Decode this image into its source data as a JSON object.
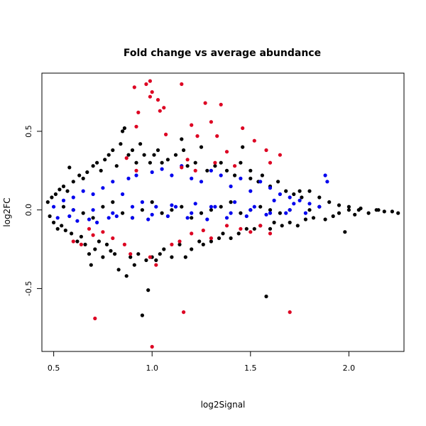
{
  "chart_data": {
    "type": "scatter",
    "title": "Fold change vs average abundance",
    "xlabel": "log2Signal",
    "ylabel": "log2FC",
    "xlim": [
      0.44,
      2.28
    ],
    "ylim": [
      -0.9,
      0.87
    ],
    "xticks": [
      {
        "value": 0.5,
        "label": "0.5"
      },
      {
        "value": 1.0,
        "label": "1.0"
      },
      {
        "value": 1.5,
        "label": "1.5"
      },
      {
        "value": 2.0,
        "label": "2.0"
      }
    ],
    "yticks": [
      {
        "value": -0.5,
        "label": "-0.5"
      },
      {
        "value": 0.0,
        "label": "0.0"
      },
      {
        "value": 0.5,
        "label": "0.5"
      }
    ],
    "colors": {
      "black": "#000000",
      "blue": "#0000ee",
      "red": "#dd0022"
    },
    "series": [
      {
        "color": "black",
        "points": [
          [
            0.47,
            0.05
          ],
          [
            0.48,
            -0.04
          ],
          [
            0.49,
            0.08
          ],
          [
            0.5,
            -0.08
          ],
          [
            0.51,
            0.1
          ],
          [
            0.52,
            -0.12
          ],
          [
            0.53,
            0.13
          ],
          [
            0.54,
            -0.1
          ],
          [
            0.55,
            0.15
          ],
          [
            0.56,
            -0.13
          ],
          [
            0.57,
            0.12
          ],
          [
            0.58,
            0.27
          ],
          [
            0.59,
            -0.15
          ],
          [
            0.6,
            0.18
          ],
          [
            0.62,
            -0.2
          ],
          [
            0.63,
            0.22
          ],
          [
            0.64,
            -0.17
          ],
          [
            0.65,
            0.2
          ],
          [
            0.66,
            -0.22
          ],
          [
            0.67,
            0.24
          ],
          [
            0.68,
            -0.28
          ],
          [
            0.69,
            -0.35
          ],
          [
            0.7,
            0.28
          ],
          [
            0.71,
            -0.25
          ],
          [
            0.72,
            0.3
          ],
          [
            0.73,
            -0.2
          ],
          [
            0.74,
            0.25
          ],
          [
            0.75,
            -0.3
          ],
          [
            0.76,
            0.32
          ],
          [
            0.77,
            -0.22
          ],
          [
            0.78,
            0.35
          ],
          [
            0.79,
            -0.26
          ],
          [
            0.8,
            0.38
          ],
          [
            0.81,
            -0.28
          ],
          [
            0.82,
            0.28
          ],
          [
            0.83,
            -0.38
          ],
          [
            0.84,
            0.42
          ],
          [
            0.85,
            0.5
          ],
          [
            0.86,
            0.52
          ],
          [
            0.87,
            -0.42
          ],
          [
            0.88,
            0.35
          ],
          [
            0.89,
            -0.3
          ],
          [
            0.9,
            0.38
          ],
          [
            0.91,
            -0.35
          ],
          [
            0.92,
            0.3
          ],
          [
            0.93,
            -0.28
          ],
          [
            0.94,
            0.42
          ],
          [
            0.95,
            -0.67
          ],
          [
            0.96,
            0.35
          ],
          [
            0.97,
            -0.32
          ],
          [
            0.98,
            -0.51
          ],
          [
            0.99,
            0.3
          ],
          [
            1.0,
            -0.3
          ],
          [
            1.01,
            0.35
          ],
          [
            1.02,
            -0.32
          ],
          [
            1.03,
            0.38
          ],
          [
            1.04,
            -0.28
          ],
          [
            1.05,
            0.3
          ],
          [
            1.06,
            -0.25
          ],
          [
            1.08,
            0.32
          ],
          [
            1.1,
            -0.3
          ],
          [
            1.12,
            0.35
          ],
          [
            1.14,
            -0.22
          ],
          [
            1.15,
            0.45
          ],
          [
            1.16,
            0.38
          ],
          [
            1.17,
            -0.3
          ],
          [
            1.18,
            0.28
          ],
          [
            1.2,
            -0.25
          ],
          [
            1.22,
            0.3
          ],
          [
            1.24,
            -0.2
          ],
          [
            1.25,
            0.4
          ],
          [
            1.26,
            -0.22
          ],
          [
            1.28,
            0.25
          ],
          [
            1.3,
            -0.2
          ],
          [
            1.32,
            0.28
          ],
          [
            1.34,
            -0.18
          ],
          [
            1.35,
            0.3
          ],
          [
            1.36,
            -0.15
          ],
          [
            1.38,
            0.25
          ],
          [
            1.4,
            -0.18
          ],
          [
            1.42,
            0.22
          ],
          [
            1.44,
            -0.15
          ],
          [
            1.45,
            0.3
          ],
          [
            1.46,
            0.4
          ],
          [
            1.48,
            -0.12
          ],
          [
            1.5,
            0.2
          ],
          [
            1.52,
            -0.12
          ],
          [
            1.54,
            0.18
          ],
          [
            1.55,
            -0.1
          ],
          [
            1.56,
            0.22
          ],
          [
            1.58,
            -0.55
          ],
          [
            1.6,
            0.15
          ],
          [
            1.62,
            -0.08
          ],
          [
            1.64,
            0.18
          ],
          [
            1.66,
            -0.1
          ],
          [
            1.68,
            0.12
          ],
          [
            1.7,
            -0.08
          ],
          [
            1.72,
            0.1
          ],
          [
            1.74,
            -0.1
          ],
          [
            1.76,
            0.08
          ],
          [
            1.78,
            -0.06
          ],
          [
            1.8,
            0.12
          ],
          [
            1.82,
            -0.05
          ],
          [
            1.85,
            0.08
          ],
          [
            1.88,
            -0.06
          ],
          [
            1.9,
            0.05
          ],
          [
            1.92,
            -0.04
          ],
          [
            1.95,
            0.03
          ],
          [
            1.98,
            -0.14
          ],
          [
            2.0,
            0.02
          ],
          [
            2.03,
            -0.03
          ],
          [
            2.06,
            0.01
          ],
          [
            2.1,
            -0.02
          ],
          [
            2.14,
            0.0
          ],
          [
            2.18,
            -0.01
          ],
          [
            2.22,
            -0.01
          ],
          [
            2.25,
            -0.02
          ],
          [
            1.5,
            0.25
          ],
          [
            1.6,
            -0.12
          ],
          [
            1.75,
            0.12
          ],
          [
            0.95,
            0.0
          ],
          [
            1.1,
            0.0
          ],
          [
            1.3,
            0.0
          ],
          [
            1.5,
            0.0
          ],
          [
            1.7,
            0.0
          ],
          [
            0.6,
            0.0
          ],
          [
            0.7,
            -0.05
          ],
          [
            0.8,
            0.05
          ],
          [
            0.9,
            -0.05
          ],
          [
            1.0,
            0.05
          ],
          [
            1.2,
            -0.05
          ],
          [
            1.4,
            0.05
          ],
          [
            1.6,
            0.0
          ],
          [
            1.8,
            0.0
          ],
          [
            2.0,
            0.0
          ],
          [
            0.55,
            0.02
          ],
          [
            0.65,
            -0.02
          ],
          [
            0.75,
            0.02
          ],
          [
            0.85,
            -0.02
          ],
          [
            1.05,
            -0.02
          ],
          [
            1.15,
            0.02
          ],
          [
            1.25,
            -0.02
          ],
          [
            1.35,
            0.02
          ],
          [
            1.45,
            -0.02
          ],
          [
            1.55,
            0.02
          ],
          [
            1.65,
            -0.02
          ],
          [
            1.85,
            0.02
          ],
          [
            1.95,
            -0.02
          ],
          [
            2.05,
            0.0
          ],
          [
            2.15,
            0.0
          ]
        ]
      },
      {
        "color": "blue",
        "points": [
          [
            0.5,
            0.02
          ],
          [
            0.52,
            -0.05
          ],
          [
            0.55,
            0.06
          ],
          [
            0.58,
            -0.04
          ],
          [
            0.6,
            0.08
          ],
          [
            0.62,
            -0.07
          ],
          [
            0.65,
            0.12
          ],
          [
            0.68,
            -0.06
          ],
          [
            0.7,
            0.1
          ],
          [
            0.72,
            -0.08
          ],
          [
            0.75,
            0.14
          ],
          [
            0.78,
            -0.05
          ],
          [
            0.8,
            0.18
          ],
          [
            0.82,
            -0.04
          ],
          [
            0.85,
            0.1
          ],
          [
            0.88,
            0.2
          ],
          [
            0.9,
            -0.05
          ],
          [
            0.92,
            0.22
          ],
          [
            0.95,
            0.05
          ],
          [
            0.98,
            -0.06
          ],
          [
            1.0,
            0.24
          ],
          [
            1.02,
            0.02
          ],
          [
            1.05,
            0.26
          ],
          [
            1.08,
            -0.04
          ],
          [
            1.1,
            0.22
          ],
          [
            1.12,
            0.02
          ],
          [
            1.15,
            0.28
          ],
          [
            1.18,
            -0.05
          ],
          [
            1.2,
            0.2
          ],
          [
            1.22,
            0.04
          ],
          [
            1.25,
            0.18
          ],
          [
            1.28,
            -0.06
          ],
          [
            1.3,
            0.25
          ],
          [
            1.32,
            0.02
          ],
          [
            1.35,
            0.22
          ],
          [
            1.38,
            -0.05
          ],
          [
            1.4,
            0.15
          ],
          [
            1.42,
            0.05
          ],
          [
            1.45,
            0.2
          ],
          [
            1.48,
            -0.04
          ],
          [
            1.5,
            0.12
          ],
          [
            1.52,
            0.02
          ],
          [
            1.55,
            0.18
          ],
          [
            1.58,
            -0.03
          ],
          [
            1.6,
            0.14
          ],
          [
            1.62,
            0.06
          ],
          [
            1.65,
            0.1
          ],
          [
            1.68,
            -0.02
          ],
          [
            1.7,
            0.08
          ],
          [
            1.72,
            0.04
          ],
          [
            1.75,
            0.06
          ],
          [
            1.78,
            -0.02
          ],
          [
            1.8,
            0.04
          ],
          [
            1.85,
            0.02
          ],
          [
            1.88,
            0.22
          ],
          [
            1.89,
            0.18
          ],
          [
            0.6,
            0.0
          ],
          [
            0.7,
            0.0
          ],
          [
            0.8,
            -0.02
          ],
          [
            0.9,
            0.02
          ],
          [
            1.0,
            -0.03
          ],
          [
            1.1,
            0.03
          ],
          [
            1.2,
            -0.02
          ],
          [
            1.3,
            0.02
          ],
          [
            1.4,
            -0.02
          ],
          [
            1.5,
            0.0
          ],
          [
            1.6,
            -0.02
          ],
          [
            1.7,
            0.0
          ]
        ]
      },
      {
        "color": "red",
        "points": [
          [
            0.91,
            0.78
          ],
          [
            0.97,
            0.8
          ],
          [
            0.99,
            0.82
          ],
          [
            1.03,
            0.7
          ],
          [
            1.15,
            0.8
          ],
          [
            0.93,
            0.62
          ],
          [
            1.06,
            0.65
          ],
          [
            1.0,
            0.75
          ],
          [
            1.04,
            0.63
          ],
          [
            0.99,
            0.72
          ],
          [
            0.92,
            0.53
          ],
          [
            1.07,
            0.48
          ],
          [
            1.2,
            0.54
          ],
          [
            1.23,
            0.47
          ],
          [
            1.27,
            0.68
          ],
          [
            1.35,
            0.67
          ],
          [
            1.3,
            0.56
          ],
          [
            1.33,
            0.47
          ],
          [
            1.38,
            0.37
          ],
          [
            1.46,
            0.52
          ],
          [
            1.52,
            0.44
          ],
          [
            1.58,
            0.38
          ],
          [
            1.32,
            0.3
          ],
          [
            1.15,
            0.27
          ],
          [
            1.22,
            0.25
          ],
          [
            1.42,
            0.28
          ],
          [
            1.6,
            0.3
          ],
          [
            1.65,
            0.35
          ],
          [
            0.87,
            0.33
          ],
          [
            0.92,
            0.25
          ],
          [
            1.18,
            0.32
          ],
          [
            0.71,
            -0.69
          ],
          [
            1.0,
            -0.87
          ],
          [
            1.16,
            -0.65
          ],
          [
            1.7,
            -0.65
          ],
          [
            1.02,
            -0.35
          ],
          [
            0.99,
            -0.3
          ],
          [
            0.89,
            -0.28
          ],
          [
            0.6,
            -0.2
          ],
          [
            0.64,
            -0.22
          ],
          [
            0.7,
            -0.16
          ],
          [
            0.8,
            -0.18
          ],
          [
            0.86,
            -0.22
          ],
          [
            1.14,
            -0.2
          ],
          [
            1.2,
            -0.15
          ],
          [
            1.3,
            -0.18
          ],
          [
            1.45,
            -0.12
          ],
          [
            1.5,
            -0.14
          ],
          [
            1.6,
            -0.15
          ],
          [
            1.26,
            -0.13
          ],
          [
            0.75,
            -0.14
          ],
          [
            1.1,
            -0.22
          ],
          [
            1.38,
            -0.1
          ],
          [
            1.55,
            -0.1
          ],
          [
            0.68,
            -0.12
          ]
        ]
      }
    ]
  }
}
